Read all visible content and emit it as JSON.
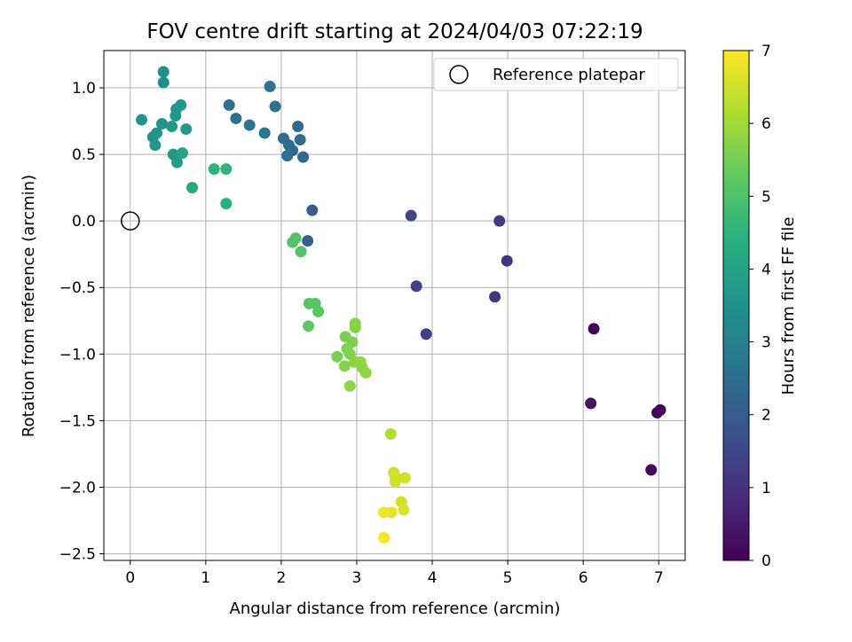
{
  "chart_data": {
    "type": "scatter",
    "title": "FOV centre drift starting at 2024/04/03 07:22:19",
    "xlabel": "Angular distance from reference (arcmin)",
    "ylabel": "Rotation from reference (arcmin)",
    "xlim": [
      -0.35,
      7.35
    ],
    "ylim": [
      -2.55,
      1.28
    ],
    "xticks": [
      0,
      1,
      2,
      3,
      4,
      5,
      6,
      7
    ],
    "yticks": [
      -2.5,
      -2.0,
      -1.5,
      -1.0,
      -0.5,
      0.0,
      0.5,
      1.0
    ],
    "grid": true,
    "legend": {
      "position": "top-right",
      "entries": [
        "Reference platepar"
      ]
    },
    "colorbar": {
      "label": "Hours from first FF file",
      "range": [
        0,
        7
      ],
      "ticks": [
        0,
        1,
        2,
        3,
        4,
        5,
        6,
        7
      ],
      "colormap": "viridis"
    },
    "reference_point": {
      "x": 0.0,
      "y": 0.0,
      "name": "Reference platepar"
    },
    "points": [
      {
        "x": 6.14,
        "y": -0.81,
        "c": 0.1
      },
      {
        "x": 6.98,
        "y": -1.44,
        "c": 0.1
      },
      {
        "x": 7.02,
        "y": -1.42,
        "c": 0.1
      },
      {
        "x": 6.9,
        "y": -1.87,
        "c": 0.15
      },
      {
        "x": 6.1,
        "y": -1.37,
        "c": 0.35
      },
      {
        "x": 4.99,
        "y": -0.3,
        "c": 1.05
      },
      {
        "x": 4.83,
        "y": -0.57,
        "c": 1.1
      },
      {
        "x": 4.89,
        "y": 0.0,
        "c": 1.2
      },
      {
        "x": 3.92,
        "y": -0.85,
        "c": 1.35
      },
      {
        "x": 3.79,
        "y": -0.49,
        "c": 1.4
      },
      {
        "x": 3.72,
        "y": 0.04,
        "c": 1.45
      },
      {
        "x": 2.41,
        "y": 0.08,
        "c": 2.05
      },
      {
        "x": 2.35,
        "y": -0.15,
        "c": 2.1
      },
      {
        "x": 1.31,
        "y": 0.87,
        "c": 2.55
      },
      {
        "x": 1.4,
        "y": 0.77,
        "c": 2.6
      },
      {
        "x": 1.58,
        "y": 0.72,
        "c": 2.7
      },
      {
        "x": 1.78,
        "y": 0.66,
        "c": 2.75
      },
      {
        "x": 1.85,
        "y": 1.01,
        "c": 2.65
      },
      {
        "x": 1.92,
        "y": 0.86,
        "c": 2.6
      },
      {
        "x": 2.03,
        "y": 0.62,
        "c": 2.5
      },
      {
        "x": 2.08,
        "y": 0.49,
        "c": 2.55
      },
      {
        "x": 2.1,
        "y": 0.57,
        "c": 2.5
      },
      {
        "x": 2.15,
        "y": 0.53,
        "c": 2.45
      },
      {
        "x": 2.22,
        "y": 0.71,
        "c": 2.4
      },
      {
        "x": 2.25,
        "y": 0.61,
        "c": 2.4
      },
      {
        "x": 2.29,
        "y": 0.48,
        "c": 2.35
      },
      {
        "x": 0.44,
        "y": 1.12,
        "c": 3.4
      },
      {
        "x": 0.44,
        "y": 1.04,
        "c": 3.45
      },
      {
        "x": 0.15,
        "y": 0.76,
        "c": 3.55
      },
      {
        "x": 0.3,
        "y": 0.63,
        "c": 3.6
      },
      {
        "x": 0.35,
        "y": 0.66,
        "c": 3.55
      },
      {
        "x": 0.33,
        "y": 0.57,
        "c": 3.65
      },
      {
        "x": 0.42,
        "y": 0.73,
        "c": 3.55
      },
      {
        "x": 0.55,
        "y": 0.71,
        "c": 3.7
      },
      {
        "x": 0.6,
        "y": 0.79,
        "c": 3.75
      },
      {
        "x": 0.61,
        "y": 0.84,
        "c": 3.7
      },
      {
        "x": 0.67,
        "y": 0.87,
        "c": 3.7
      },
      {
        "x": 0.57,
        "y": 0.5,
        "c": 3.75
      },
      {
        "x": 0.62,
        "y": 0.44,
        "c": 3.8
      },
      {
        "x": 0.74,
        "y": 0.69,
        "c": 3.7
      },
      {
        "x": 0.69,
        "y": 0.51,
        "c": 4.1
      },
      {
        "x": 0.82,
        "y": 0.25,
        "c": 4.25
      },
      {
        "x": 1.11,
        "y": 0.39,
        "c": 4.5
      },
      {
        "x": 1.27,
        "y": 0.39,
        "c": 4.55
      },
      {
        "x": 1.27,
        "y": 0.13,
        "c": 4.4
      },
      {
        "x": 2.15,
        "y": -0.16,
        "c": 5.05
      },
      {
        "x": 2.19,
        "y": -0.13,
        "c": 5.05
      },
      {
        "x": 2.26,
        "y": -0.23,
        "c": 5.1
      },
      {
        "x": 2.37,
        "y": -0.62,
        "c": 5.15
      },
      {
        "x": 2.45,
        "y": -0.62,
        "c": 5.15
      },
      {
        "x": 2.49,
        "y": -0.68,
        "c": 5.2
      },
      {
        "x": 2.36,
        "y": -0.79,
        "c": 5.25
      },
      {
        "x": 2.74,
        "y": -1.02,
        "c": 5.55
      },
      {
        "x": 2.85,
        "y": -0.87,
        "c": 5.55
      },
      {
        "x": 2.87,
        "y": -0.96,
        "c": 5.6
      },
      {
        "x": 2.84,
        "y": -1.09,
        "c": 5.65
      },
      {
        "x": 2.91,
        "y": -1.0,
        "c": 5.65
      },
      {
        "x": 2.94,
        "y": -0.91,
        "c": 5.6
      },
      {
        "x": 2.98,
        "y": -0.77,
        "c": 5.7
      },
      {
        "x": 2.98,
        "y": -0.8,
        "c": 5.7
      },
      {
        "x": 2.97,
        "y": -1.06,
        "c": 5.75
      },
      {
        "x": 3.05,
        "y": -1.06,
        "c": 5.8
      },
      {
        "x": 3.07,
        "y": -1.1,
        "c": 5.75
      },
      {
        "x": 3.12,
        "y": -1.14,
        "c": 5.8
      },
      {
        "x": 2.91,
        "y": -1.24,
        "c": 5.8
      },
      {
        "x": 3.45,
        "y": -1.6,
        "c": 6.2
      },
      {
        "x": 3.49,
        "y": -1.89,
        "c": 6.5
      },
      {
        "x": 3.51,
        "y": -1.92,
        "c": 6.55
      },
      {
        "x": 3.51,
        "y": -1.96,
        "c": 6.5
      },
      {
        "x": 3.64,
        "y": -1.93,
        "c": 6.5
      },
      {
        "x": 3.59,
        "y": -2.11,
        "c": 6.55
      },
      {
        "x": 3.62,
        "y": -2.17,
        "c": 6.6
      },
      {
        "x": 3.46,
        "y": -2.19,
        "c": 6.75
      },
      {
        "x": 3.36,
        "y": -2.19,
        "c": 6.85
      },
      {
        "x": 3.36,
        "y": -2.38,
        "c": 6.95
      }
    ]
  }
}
